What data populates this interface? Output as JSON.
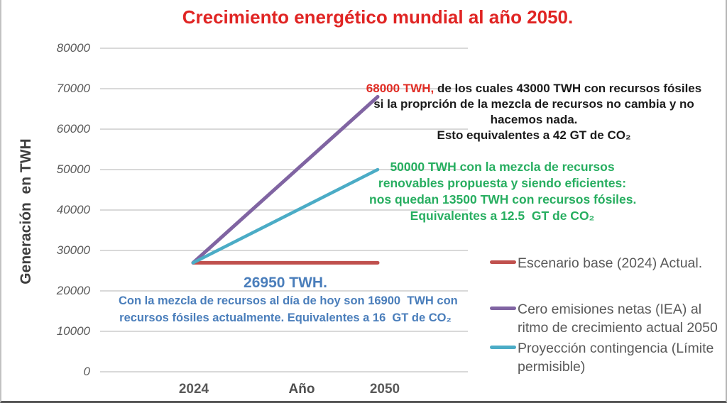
{
  "title": "Crecimiento energético mundial al año 2050.",
  "chart_data": {
    "type": "line",
    "title": "Crecimiento energético mundial al año 2050.",
    "xlabel": "Año",
    "ylabel": "Generación  en TWH",
    "x": [
      2024,
      2050
    ],
    "xticks": [
      "2024",
      "2050"
    ],
    "yticks": [
      80000,
      70000,
      60000,
      50000,
      40000,
      30000,
      20000,
      10000,
      0
    ],
    "ylim": [
      0,
      80000
    ],
    "grid": true,
    "legend_position": "right-bottom",
    "series": [
      {
        "name": "Escenario base (2024) Actual.",
        "color": "#C0504D",
        "values": [
          26950,
          26950
        ]
      },
      {
        "name": "Cero emisiones netas (IEA) al ritmo de crecimiento actual 2050",
        "color": "#8064A2",
        "values": [
          26950,
          68000
        ]
      },
      {
        "name": "Proyección contingencia (Límite permisible)",
        "color": "#4BACC6",
        "values": [
          26950,
          50000
        ]
      }
    ]
  },
  "annotations": {
    "nze": {
      "highlight": "68000 TWH,",
      "highlight_color": "#E02B23",
      "line1": " de los cuales 43000 TWH con recursos fósiles",
      "line2": "si la proprción de la mezcla de recursos no cambia y no",
      "line3": "hacemos nada.",
      "line4": "Esto equivalentes a 42 GT de CO₂",
      "color": "#1B1B1B"
    },
    "contingencia": {
      "line1": "50000 TWH con la mezcla de recursos",
      "line2": "renovables propuesta y siendo eficientes:",
      "line3": "nos quedan 13500 TWH con recursos fósiles.",
      "line4": "Equivalentes a 12.5  GT de CO₂",
      "color": "#27AE60"
    },
    "base": {
      "headline": "26950 TWH.",
      "line1": "Con la mezcla de recursos al día de hoy son 16900  TWH con",
      "line2": "recursos fósiles actualmente. Equivalentes a 16  GT de CO₂",
      "color": "#4A7EBB"
    }
  },
  "legend": {
    "items": [
      {
        "label": "Escenario base (2024) Actual.",
        "color": "#C0504D"
      },
      {
        "label": "Cero emisiones netas (IEA) al ritmo de crecimiento actual 2050",
        "color": "#8064A2"
      },
      {
        "label": "Proyección contingencia (Límite permisible)",
        "color": "#4BACC6"
      }
    ]
  },
  "colors": {
    "title": "#E02423",
    "grid": "#D9D9D9",
    "axis_text": "#595959",
    "axis_title": "#3F3F3F"
  }
}
